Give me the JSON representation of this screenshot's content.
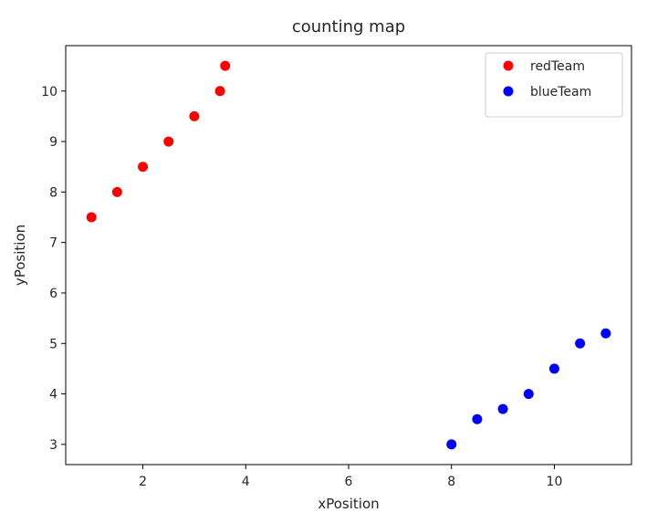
{
  "chart_data": {
    "type": "scatter",
    "title": "counting map",
    "xlabel": "xPosition",
    "ylabel": "yPosition",
    "xlim": [
      0.5,
      11.5
    ],
    "ylim": [
      2.6,
      10.9
    ],
    "xticks": [
      2,
      4,
      6,
      8,
      10
    ],
    "yticks": [
      3,
      4,
      5,
      6,
      7,
      8,
      9,
      10
    ],
    "grid": false,
    "legend_position": "top-right",
    "series": [
      {
        "name": "redTeam",
        "color": "#ff0000",
        "points": [
          {
            "x": 1.0,
            "y": 7.5
          },
          {
            "x": 1.5,
            "y": 8.0
          },
          {
            "x": 2.0,
            "y": 8.5
          },
          {
            "x": 2.5,
            "y": 9.0
          },
          {
            "x": 3.0,
            "y": 9.5
          },
          {
            "x": 3.5,
            "y": 10.0
          },
          {
            "x": 3.6,
            "y": 10.5
          }
        ]
      },
      {
        "name": "blueTeam",
        "color": "#0000ff",
        "points": [
          {
            "x": 8.0,
            "y": 3.0
          },
          {
            "x": 8.5,
            "y": 3.5
          },
          {
            "x": 9.0,
            "y": 3.7
          },
          {
            "x": 9.5,
            "y": 4.0
          },
          {
            "x": 10.0,
            "y": 4.5
          },
          {
            "x": 10.5,
            "y": 5.0
          },
          {
            "x": 11.0,
            "y": 5.2
          }
        ]
      }
    ]
  }
}
